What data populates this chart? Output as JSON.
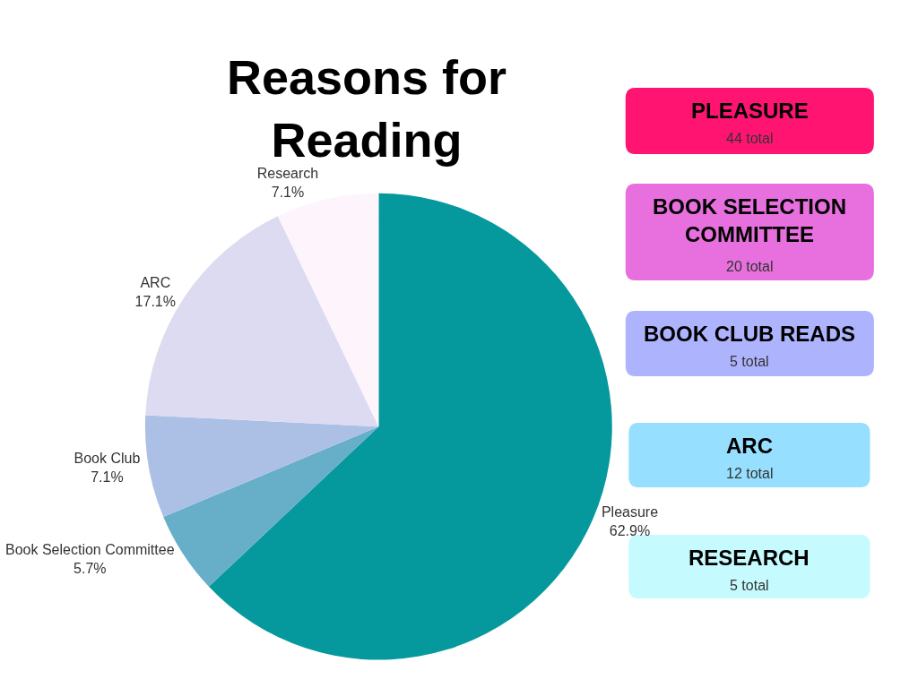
{
  "chart_data": [
    {
      "type": "pie",
      "title": "Reasons for Reading",
      "categories": [
        "Pleasure",
        "Book Selection Committee",
        "Book Club",
        "ARC",
        "Research"
      ],
      "values": [
        62.9,
        5.7,
        7.1,
        17.1,
        7.1
      ],
      "value_labels": [
        "62.9%",
        "5.7%",
        "7.1%",
        "17.1%",
        "7.1%"
      ],
      "colors": [
        "#05999e",
        "#67aec8",
        "#abc0e4",
        "#dddbf1",
        "#fdf4fc"
      ]
    },
    {
      "type": "other",
      "annotations": [
        "PLEASURE",
        "44 total",
        "BOOK SELECTION COMMITTEE",
        "20 total",
        "BOOK CLUB READS",
        "5 total",
        "ARC",
        "12 total",
        "RESEARCH",
        "5 total"
      ],
      "colors": [
        "#ff1472",
        "#e770de",
        "#aeb3fe",
        "#97dffe",
        "#c5fafe"
      ]
    }
  ]
}
